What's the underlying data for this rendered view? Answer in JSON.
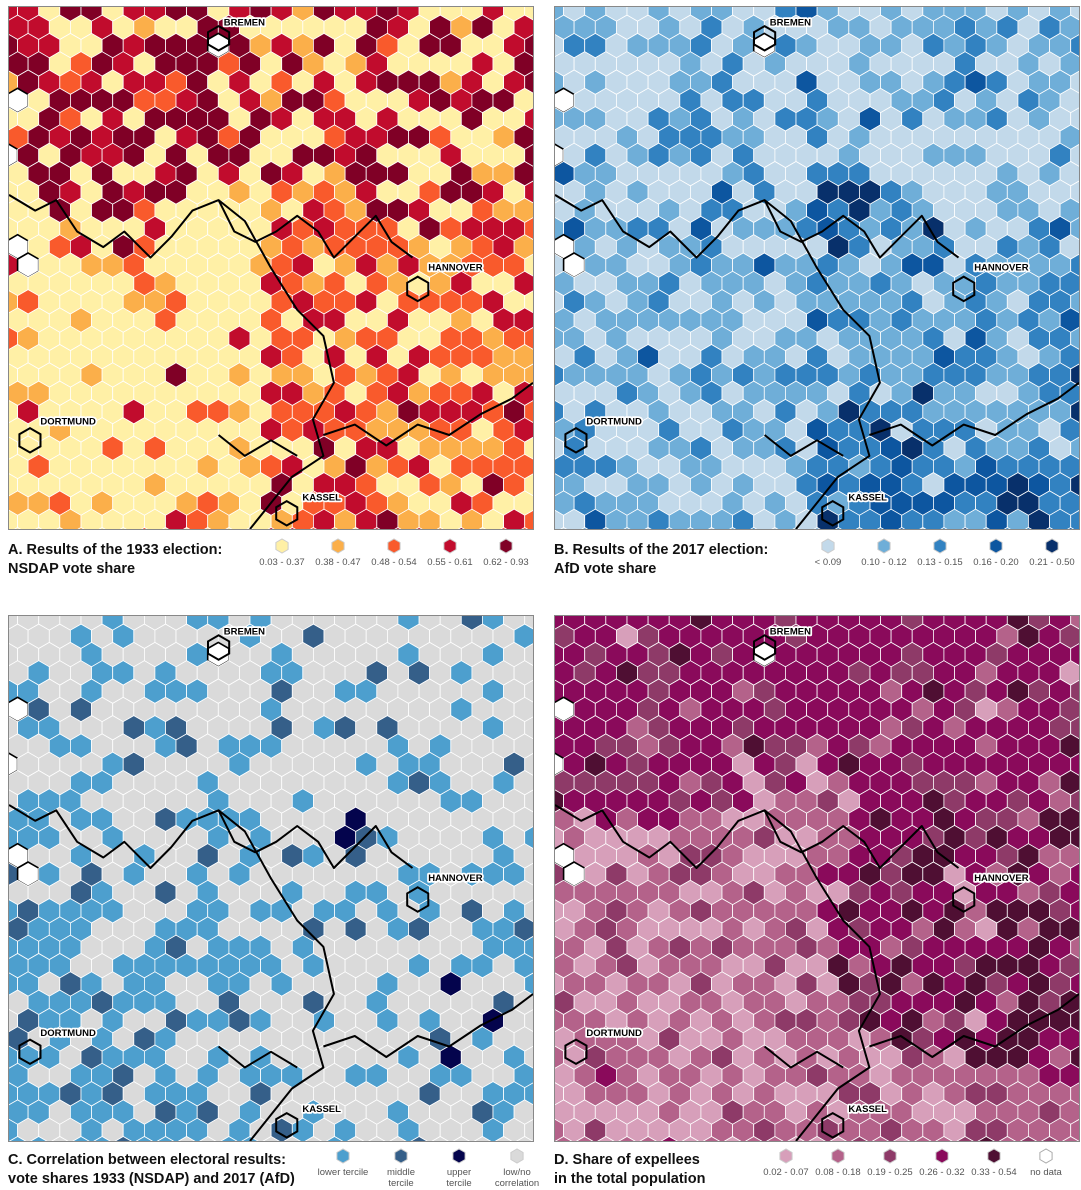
{
  "panels": [
    {
      "id": "A",
      "caption_line1": "A. Results of the 1933 election:",
      "caption_line2": "NSDAP vote share",
      "palette": [
        "#fff0a6",
        "#fbaf4a",
        "#f95a2c",
        "#c10c2d",
        "#800026"
      ],
      "legend": [
        {
          "label": "0.03 - 0.37",
          "color": "#fff0a6"
        },
        {
          "label": "0.38 - 0.47",
          "color": "#fbaf4a"
        },
        {
          "label": "0.48 - 0.54",
          "color": "#f95a2c"
        },
        {
          "label": "0.55 - 0.61",
          "color": "#c10c2d"
        },
        {
          "label": "0.62 - 0.93",
          "color": "#800026"
        }
      ],
      "cities": [
        "BREMEN",
        "HANNOVER",
        "DORTMUND",
        "KASSEL"
      ]
    },
    {
      "id": "B",
      "caption_line1": "B. Results of the 2017 election:",
      "caption_line2": "AfD vote share",
      "palette": [
        "#c2d9ea",
        "#6faed8",
        "#3282c1",
        "#0d56a0",
        "#08306b"
      ],
      "legend": [
        {
          "label": "< 0.09",
          "color": "#c2d9ea"
        },
        {
          "label": "0.10 - 0.12",
          "color": "#6faed8"
        },
        {
          "label": "0.13 - 0.15",
          "color": "#3282c1"
        },
        {
          "label": "0.16 - 0.20",
          "color": "#0d56a0"
        },
        {
          "label": "0.21 - 0.50",
          "color": "#08306b"
        }
      ],
      "cities": [
        "BREMEN",
        "HANNOVER",
        "DORTMUND",
        "KASSEL"
      ]
    },
    {
      "id": "C",
      "caption_line1": "C. Correlation between electoral results:",
      "caption_line2": "vote shares 1933 (NSDAP) and 2017 (AfD)",
      "palette": [
        "#dadada",
        "#4d9fce",
        "#355f89",
        "#04044d"
      ],
      "legend": [
        {
          "label": "lower tercile",
          "color": "#4d9fce"
        },
        {
          "label": "middle tercile",
          "color": "#355f89"
        },
        {
          "label": "upper tercile",
          "color": "#04044d"
        },
        {
          "label": "low/no correlation",
          "color": "#dadada"
        }
      ],
      "cities": [
        "BREMEN",
        "HANNOVER",
        "DORTMUND",
        "KASSEL"
      ]
    },
    {
      "id": "D",
      "caption_line1": "D. Share of expellees",
      "caption_line2": "in the total population",
      "palette": [
        "#d79fba",
        "#b4628a",
        "#8e3a68",
        "#8a0a5b",
        "#4f0f33"
      ],
      "legend": [
        {
          "label": "0.02 - 0.07",
          "color": "#d79fba"
        },
        {
          "label": "0.08 - 0.18",
          "color": "#b4628a"
        },
        {
          "label": "0.19 - 0.25",
          "color": "#8e3a68"
        },
        {
          "label": "0.26 - 0.32",
          "color": "#8a0a5b"
        },
        {
          "label": "0.33 - 0.54",
          "color": "#4f0f33"
        },
        {
          "label": "no data",
          "color": "#ffffff"
        }
      ],
      "cities": [
        "BREMEN",
        "HANNOVER",
        "DORTMUND",
        "KASSEL"
      ]
    }
  ]
}
